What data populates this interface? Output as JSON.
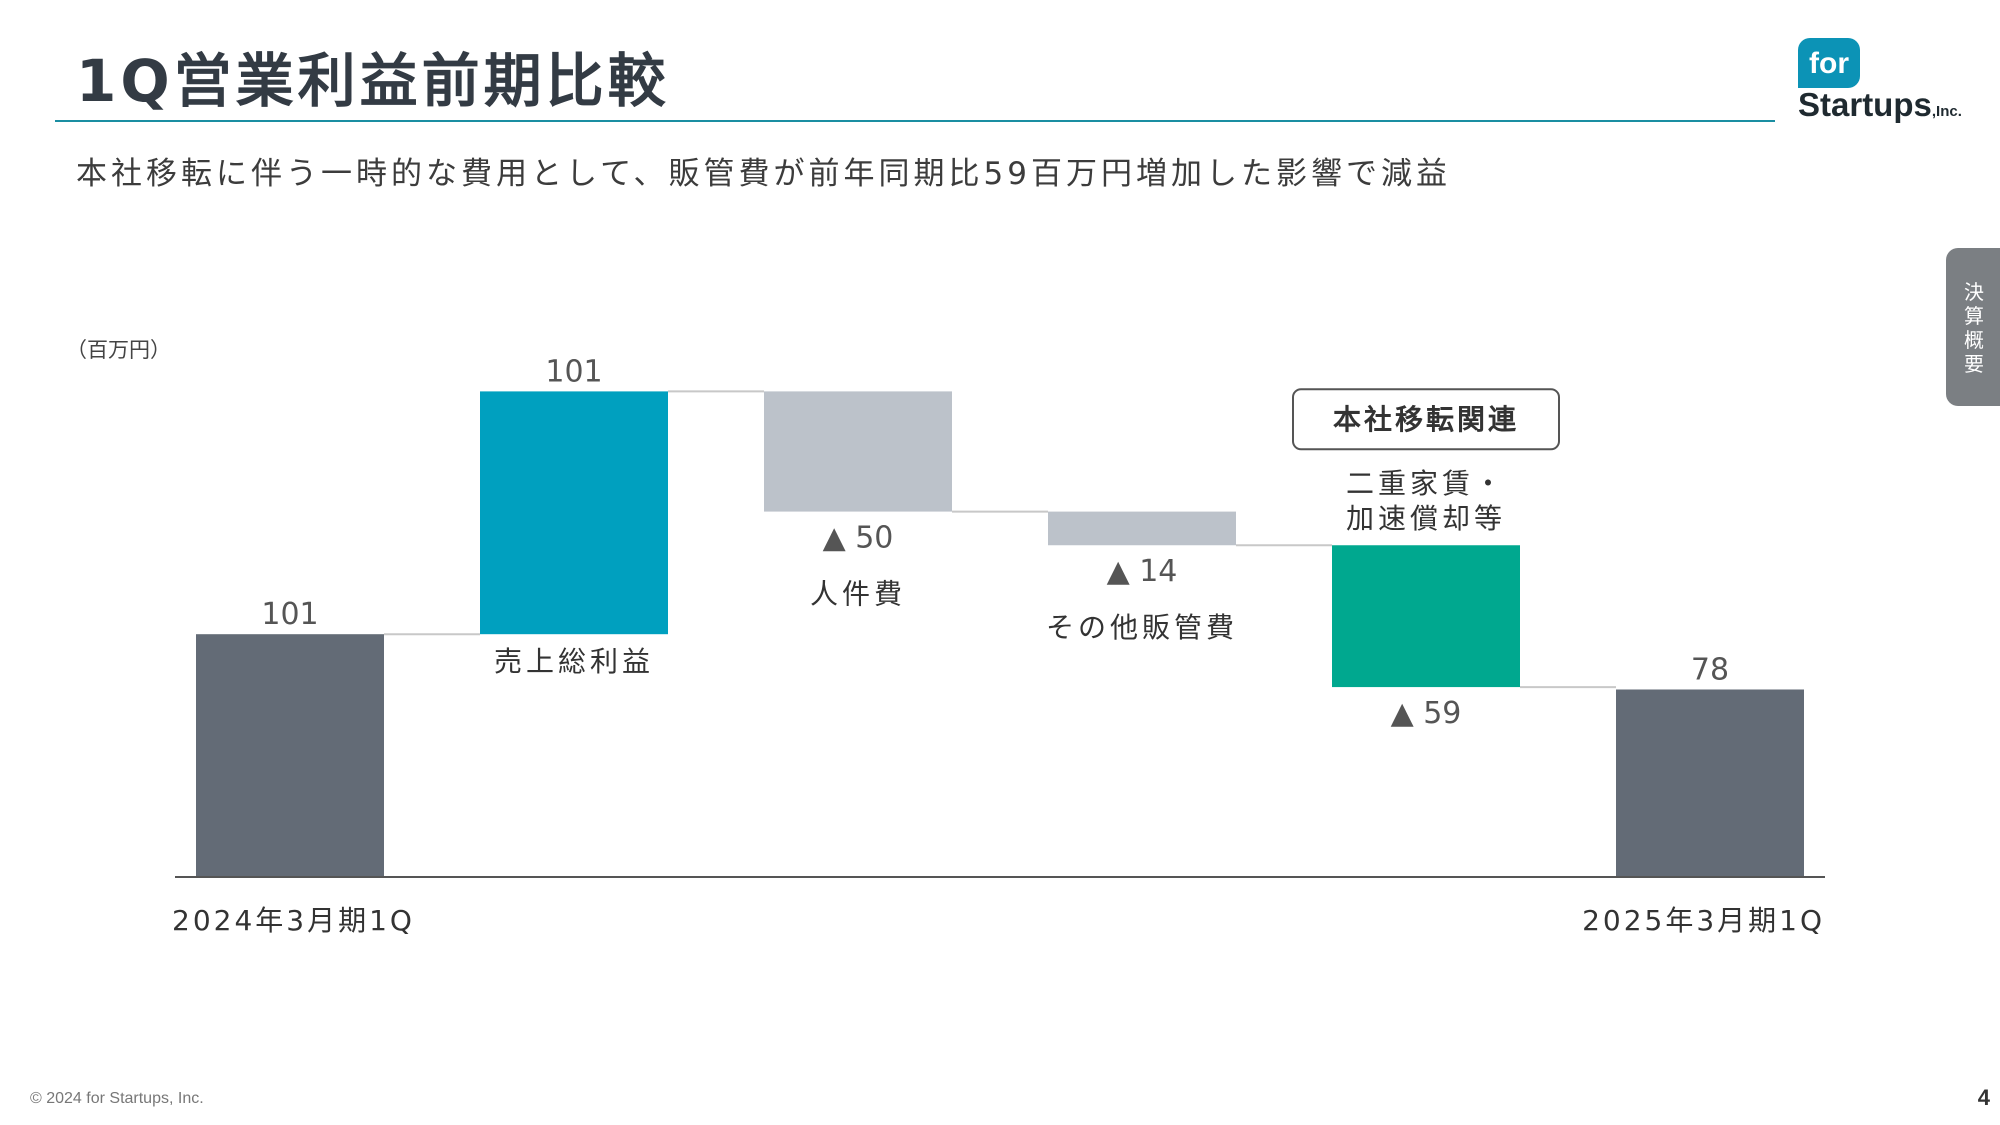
{
  "header": {
    "title": "1Q営業利益前期比較",
    "subtitle": "本社移転に伴う一時的な費用として、販管費が前年同期比59百万円増加した影響で減益"
  },
  "logo": {
    "badge": "for",
    "name": "Startups",
    "suffix": ",Inc."
  },
  "side_tab": {
    "label": "決算概要"
  },
  "footer": {
    "copyright": "© 2024 for Startups, Inc.",
    "page": "4"
  },
  "colors": {
    "total": "#636b76",
    "gross_profit": "#00a0bf",
    "decrease": "#bcc2ca",
    "relocation": "#00a88f",
    "axis": "#555555",
    "connector": "#c8c8c8"
  },
  "chart_data": {
    "type": "waterfall",
    "unit_label": "（百万円）",
    "categories": [
      "2024年3月期1Q",
      "売上総利益",
      "人件費",
      "その他販管費",
      "本社移転関連",
      "2025年3月期1Q"
    ],
    "values": [
      101,
      101,
      -50,
      -14,
      -59,
      78
    ],
    "value_labels": [
      "101",
      "101",
      "▲ 50",
      "▲ 14",
      "▲ 59",
      "78"
    ],
    "measure": [
      "total",
      "relative",
      "relative",
      "relative",
      "relative",
      "total"
    ],
    "category_labels": [
      "2024年3月期1Q",
      "売上総利益",
      "人件費",
      "その他販管費",
      "二重家賃・加速償却等",
      "2025年3月期1Q"
    ],
    "callout": {
      "title": "本社移転関連",
      "lines": [
        "二重家賃・",
        "加速償却等"
      ]
    },
    "ylim": [
      0,
      202
    ]
  }
}
